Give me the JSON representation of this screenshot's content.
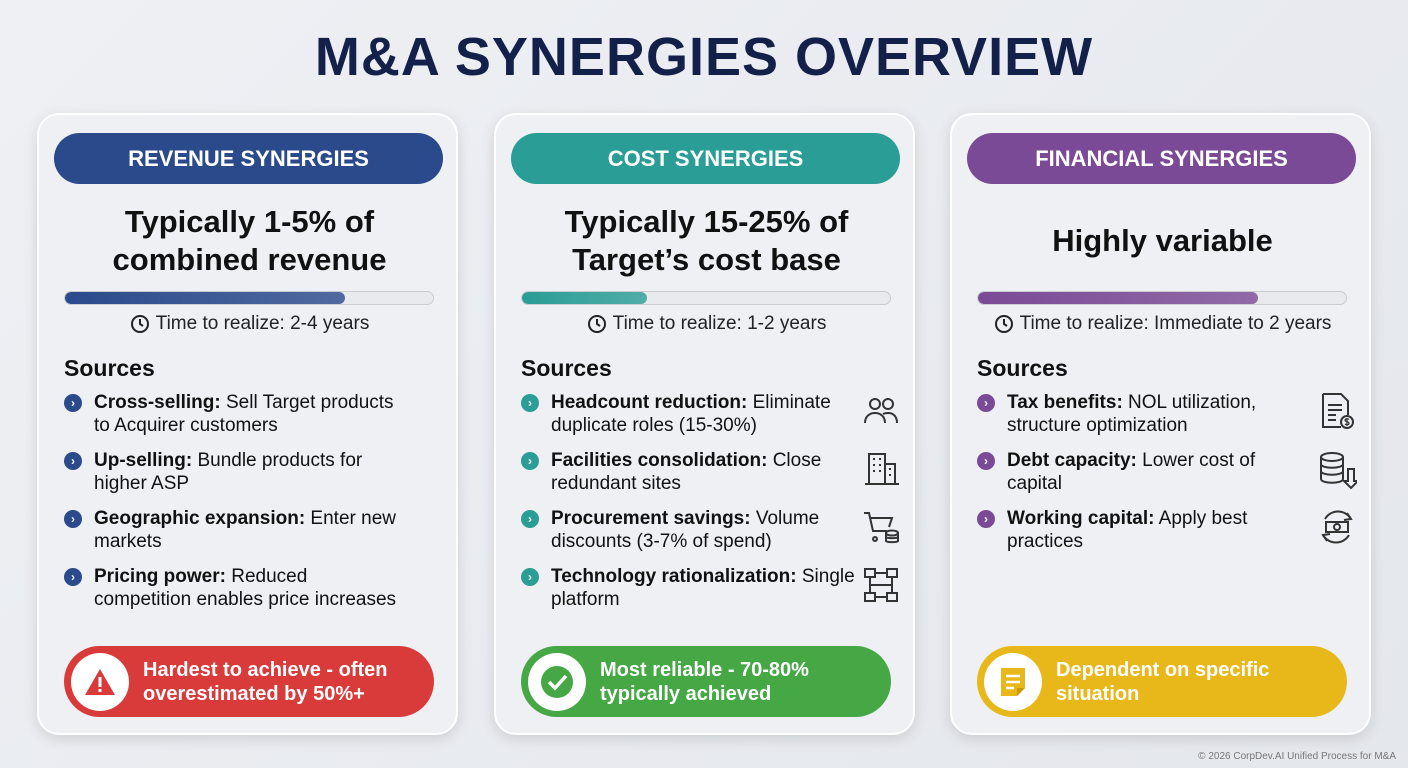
{
  "title": "M&A SYNERGIES OVERVIEW",
  "footer": "© 2026 CorpDev.AI Unified Process for M&A",
  "cards": [
    {
      "header": "REVENUE SYNERGIES",
      "color": "#2a4a8c",
      "headline": "Typically 1-5% of combined revenue",
      "progress_percent": 76,
      "time": "Time to realize: 2-4 years",
      "sources_label": "Sources",
      "items": [
        {
          "bold": "Cross-selling:",
          "text": " Sell Target products to Acquirer customers"
        },
        {
          "bold": "Up-selling:",
          "text": " Bundle products for higher ASP"
        },
        {
          "bold": "Geographic expansion:",
          "text": " Enter new markets"
        },
        {
          "bold": "Pricing power:",
          "text": " Reduced competition enables price increases"
        }
      ],
      "callout": "Hardest to achieve - often overestimated by 50%+",
      "callout_color": "#d93a3a",
      "callout_icon": "warning-icon"
    },
    {
      "header": "COST SYNERGIES",
      "color": "#2a9d96",
      "headline": "Typically 15-25% of Target’s cost base",
      "progress_percent": 34,
      "time": "Time to realize: 1-2 years",
      "sources_label": "Sources",
      "items": [
        {
          "bold": "Headcount reduction:",
          "text": " Eliminate duplicate roles (15-30%)",
          "icon": "people-icon"
        },
        {
          "bold": "Facilities consolidation:",
          "text": " Close redundant sites",
          "icon": "building-icon"
        },
        {
          "bold": "Procurement savings:",
          "text": " Volume discounts (3-7% of spend)",
          "icon": "cart-icon"
        },
        {
          "bold": "Technology rationalization:",
          "text": " Single platform",
          "icon": "network-icon"
        }
      ],
      "callout": "Most reliable - 70-80% typically achieved",
      "callout_color": "#45a845",
      "callout_icon": "check-icon"
    },
    {
      "header": "FINANCIAL SYNERGIES",
      "color": "#7b4a96",
      "headline": "Highly variable",
      "progress_percent": 76,
      "time": "Time to realize: Immediate to 2 years",
      "sources_label": "Sources",
      "items": [
        {
          "bold": "Tax benefits:",
          "text": " NOL utilization, structure optimization",
          "icon": "tax-document-icon"
        },
        {
          "bold": "Debt capacity:",
          "text": " Lower cost of capital",
          "icon": "database-down-icon"
        },
        {
          "bold": "Working capital:",
          "text": " Apply best practices",
          "icon": "cash-cycle-icon"
        }
      ],
      "callout": "Dependent on specific situation",
      "callout_color": "#e8b81a",
      "callout_icon": "note-icon"
    }
  ]
}
